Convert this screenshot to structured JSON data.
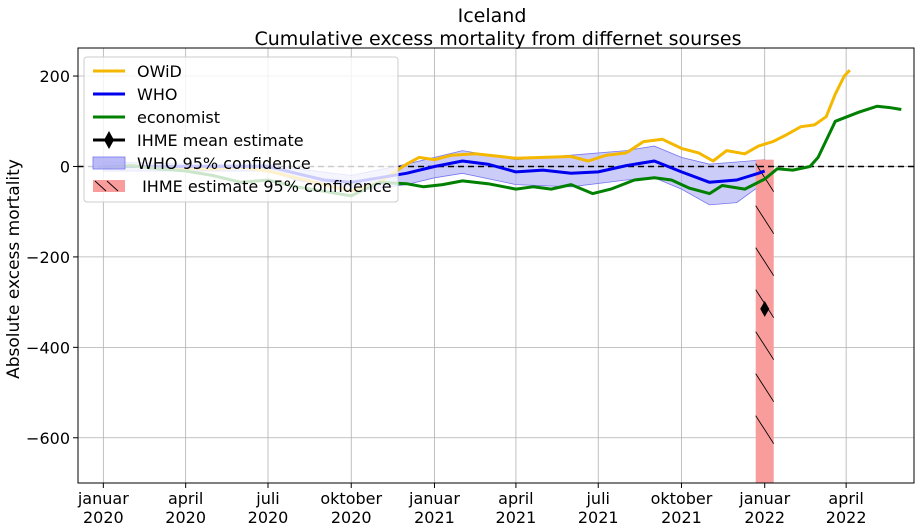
{
  "chart_data": {
    "type": "line",
    "title": "Iceland",
    "subtitle": "Cumulative excess mortality from differnet sourses",
    "xlabel": "",
    "ylabel": "Absolute excess mortality",
    "xlim": [
      "2019-12-04",
      "2022-06-15"
    ],
    "ylim": [
      -700,
      262
    ],
    "yticks": [
      200,
      0,
      -200,
      -400,
      -600
    ],
    "ytick_labels": [
      "200",
      "0",
      "−200",
      "−400",
      "−600"
    ],
    "xticks": [
      {
        "date": "2020-01-01",
        "label1": "januar",
        "label2": "2020"
      },
      {
        "date": "2020-04-01",
        "label1": "april",
        "label2": "2020"
      },
      {
        "date": "2020-07-01",
        "label1": "juli",
        "label2": "2020"
      },
      {
        "date": "2020-10-01",
        "label1": "oktober",
        "label2": "2020"
      },
      {
        "date": "2021-01-01",
        "label1": "januar",
        "label2": "2021"
      },
      {
        "date": "2021-04-01",
        "label1": "april",
        "label2": "2021"
      },
      {
        "date": "2021-07-01",
        "label1": "juli",
        "label2": "2021"
      },
      {
        "date": "2021-10-01",
        "label1": "oktober",
        "label2": "2021"
      },
      {
        "date": "2022-01-01",
        "label1": "januar",
        "label2": "2022"
      },
      {
        "date": "2022-04-01",
        "label1": "april",
        "label2": "2022"
      }
    ],
    "grid": true,
    "legend_position": "top-left",
    "reference_line": {
      "y": 0,
      "style": "dashed",
      "color": "#000000"
    },
    "series": [
      {
        "name": "OWiD",
        "color": "#f5b800",
        "points": [
          [
            "2020-01-01",
            0
          ],
          [
            "2020-02-01",
            2
          ],
          [
            "2020-03-01",
            -2
          ],
          [
            "2020-04-01",
            -4
          ],
          [
            "2020-05-01",
            -6
          ],
          [
            "2020-06-01",
            -2
          ],
          [
            "2020-07-01",
            -10
          ],
          [
            "2020-08-01",
            -25
          ],
          [
            "2020-09-01",
            -40
          ],
          [
            "2020-10-01",
            -55
          ],
          [
            "2020-11-01",
            -35
          ],
          [
            "2020-12-01",
            5
          ],
          [
            "2020-12-15",
            20
          ],
          [
            "2021-01-01",
            15
          ],
          [
            "2021-01-20",
            25
          ],
          [
            "2021-02-15",
            28
          ],
          [
            "2021-03-15",
            22
          ],
          [
            "2021-04-01",
            18
          ],
          [
            "2021-05-01",
            20
          ],
          [
            "2021-06-01",
            22
          ],
          [
            "2021-06-20",
            12
          ],
          [
            "2021-07-10",
            25
          ],
          [
            "2021-08-01",
            30
          ],
          [
            "2021-08-20",
            55
          ],
          [
            "2021-09-10",
            60
          ],
          [
            "2021-10-01",
            40
          ],
          [
            "2021-10-20",
            30
          ],
          [
            "2021-11-05",
            12
          ],
          [
            "2021-11-20",
            35
          ],
          [
            "2021-12-10",
            28
          ],
          [
            "2021-12-25",
            45
          ],
          [
            "2022-01-10",
            55
          ],
          [
            "2022-01-25",
            70
          ],
          [
            "2022-02-10",
            88
          ],
          [
            "2022-02-25",
            92
          ],
          [
            "2022-03-10",
            110
          ],
          [
            "2022-03-20",
            160
          ],
          [
            "2022-03-30",
            200
          ],
          [
            "2022-04-05",
            213
          ]
        ]
      },
      {
        "name": "WHO",
        "color": "#0000ee",
        "points": [
          [
            "2020-01-01",
            0
          ],
          [
            "2020-02-01",
            0
          ],
          [
            "2020-03-01",
            0
          ],
          [
            "2020-04-01",
            0
          ],
          [
            "2020-05-01",
            0
          ],
          [
            "2020-06-01",
            0
          ],
          [
            "2020-07-01",
            0
          ],
          [
            "2020-08-01",
            -15
          ],
          [
            "2020-09-01",
            -30
          ],
          [
            "2020-10-01",
            -35
          ],
          [
            "2020-11-01",
            -25
          ],
          [
            "2020-12-01",
            -15
          ],
          [
            "2021-01-01",
            0
          ],
          [
            "2021-02-01",
            12
          ],
          [
            "2021-03-01",
            5
          ],
          [
            "2021-04-01",
            -12
          ],
          [
            "2021-05-01",
            -8
          ],
          [
            "2021-06-01",
            -15
          ],
          [
            "2021-07-01",
            -12
          ],
          [
            "2021-08-01",
            2
          ],
          [
            "2021-09-01",
            12
          ],
          [
            "2021-10-01",
            -12
          ],
          [
            "2021-11-01",
            -35
          ],
          [
            "2021-12-01",
            -30
          ],
          [
            "2021-12-25",
            -15
          ],
          [
            "2022-01-01",
            -10
          ]
        ]
      },
      {
        "name": "economist",
        "color": "#008000",
        "points": [
          [
            "2020-01-01",
            -3
          ],
          [
            "2020-02-01",
            2
          ],
          [
            "2020-03-01",
            -5
          ],
          [
            "2020-04-01",
            -10
          ],
          [
            "2020-05-01",
            -20
          ],
          [
            "2020-06-01",
            -35
          ],
          [
            "2020-07-01",
            -30
          ],
          [
            "2020-08-01",
            -45
          ],
          [
            "2020-09-01",
            -55
          ],
          [
            "2020-10-01",
            -65
          ],
          [
            "2020-11-01",
            -35
          ],
          [
            "2020-12-01",
            -38
          ],
          [
            "2020-12-20",
            -45
          ],
          [
            "2021-01-10",
            -40
          ],
          [
            "2021-02-01",
            -32
          ],
          [
            "2021-03-01",
            -38
          ],
          [
            "2021-04-01",
            -50
          ],
          [
            "2021-04-20",
            -45
          ],
          [
            "2021-05-10",
            -50
          ],
          [
            "2021-06-01",
            -40
          ],
          [
            "2021-06-25",
            -60
          ],
          [
            "2021-07-15",
            -50
          ],
          [
            "2021-08-10",
            -30
          ],
          [
            "2021-09-01",
            -25
          ],
          [
            "2021-09-20",
            -30
          ],
          [
            "2021-10-10",
            -48
          ],
          [
            "2021-11-01",
            -60
          ],
          [
            "2021-11-15",
            -42
          ],
          [
            "2021-12-10",
            -50
          ],
          [
            "2022-01-01",
            -28
          ],
          [
            "2022-01-15",
            -5
          ],
          [
            "2022-02-01",
            -8
          ],
          [
            "2022-02-20",
            0
          ],
          [
            "2022-03-01",
            20
          ],
          [
            "2022-03-20",
            100
          ],
          [
            "2022-04-15",
            120
          ],
          [
            "2022-05-05",
            133
          ],
          [
            "2022-05-20",
            130
          ],
          [
            "2022-06-01",
            126
          ]
        ]
      }
    ],
    "who_confidence": {
      "name": "WHO 95% confidence",
      "color": "#aaaaf5",
      "upper": [
        [
          "2020-01-01",
          10
        ],
        [
          "2020-04-01",
          5
        ],
        [
          "2020-07-01",
          5
        ],
        [
          "2020-08-01",
          -5
        ],
        [
          "2020-10-01",
          -20
        ],
        [
          "2020-12-01",
          5
        ],
        [
          "2021-01-01",
          20
        ],
        [
          "2021-02-01",
          35
        ],
        [
          "2021-04-01",
          15
        ],
        [
          "2021-06-01",
          25
        ],
        [
          "2021-08-01",
          35
        ],
        [
          "2021-09-01",
          45
        ],
        [
          "2021-10-01",
          20
        ],
        [
          "2021-11-01",
          5
        ],
        [
          "2021-12-01",
          10
        ],
        [
          "2022-01-01",
          15
        ]
      ],
      "lower": [
        [
          "2020-01-01",
          -10
        ],
        [
          "2020-04-01",
          -10
        ],
        [
          "2020-07-01",
          -10
        ],
        [
          "2020-08-01",
          -30
        ],
        [
          "2020-10-01",
          -55
        ],
        [
          "2020-12-01",
          -40
        ],
        [
          "2021-01-01",
          -25
        ],
        [
          "2021-02-01",
          -15
        ],
        [
          "2021-04-01",
          -40
        ],
        [
          "2021-06-01",
          -45
        ],
        [
          "2021-08-01",
          -30
        ],
        [
          "2021-09-01",
          -25
        ],
        [
          "2021-10-01",
          -50
        ],
        [
          "2021-11-01",
          -85
        ],
        [
          "2021-12-01",
          -80
        ],
        [
          "2022-01-01",
          -35
        ]
      ]
    },
    "ihme": {
      "mean_name": "IHME mean estimate",
      "ci_name": " IHME estimate 95% confidence",
      "date": "2022-01-01",
      "mean": -315,
      "ci_low": -700,
      "ci_high": 15,
      "bar_color": "#f89c9c",
      "marker_color": "#000000"
    }
  }
}
